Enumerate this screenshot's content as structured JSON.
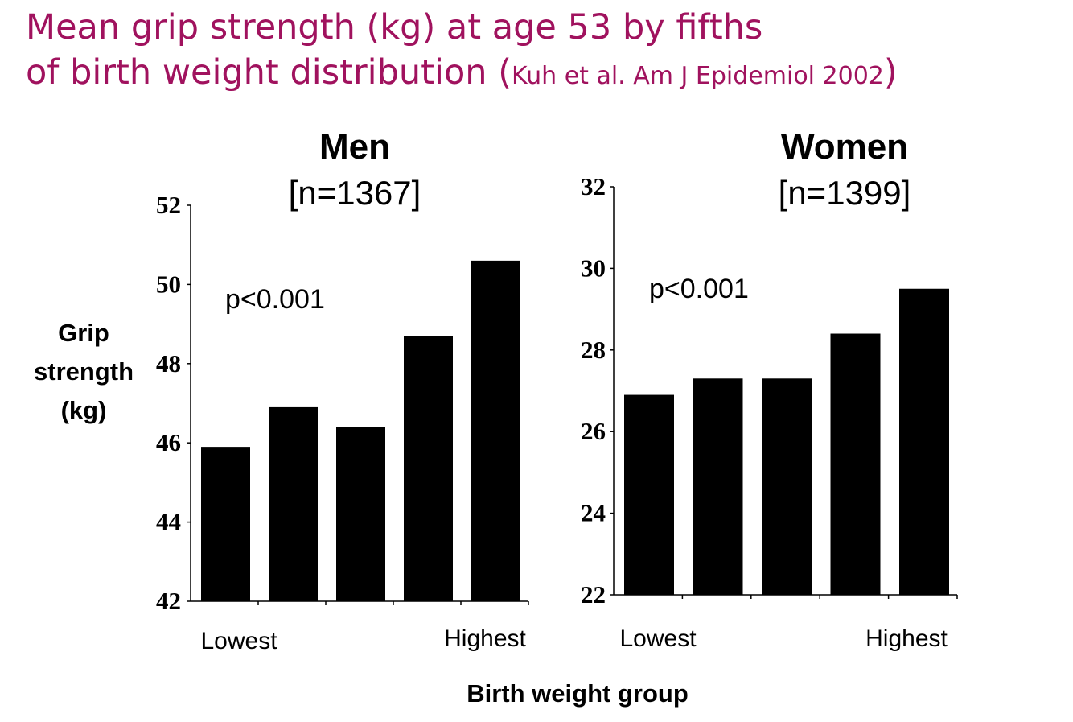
{
  "title": {
    "line1": "Mean grip strength (kg) at age 53 by fifths",
    "line2": "of birth weight distribution",
    "paren_open": "(",
    "citation": "Kuh et al. Am J Epidemiol 2002",
    "paren_close": ")"
  },
  "colors": {
    "title": "#a0125e",
    "bars": "#000000",
    "axes": "#000000"
  },
  "chart_data": [
    {
      "type": "bar",
      "title": "Men",
      "subtitle": "[n=1367]",
      "annotation": "p<0.001",
      "categories": [
        "Lowest",
        "",
        "",
        "",
        "Highest"
      ],
      "values": [
        45.9,
        46.9,
        46.4,
        48.7,
        50.6
      ],
      "ylim": [
        42,
        52
      ],
      "yticks": [
        42,
        44,
        46,
        48,
        50,
        52
      ],
      "ylabel": "Grip strength (kg)",
      "xlabel": "Birth weight group"
    },
    {
      "type": "bar",
      "title": "Women",
      "subtitle": "[n=1399]",
      "annotation": "p<0.001",
      "categories": [
        "Lowest",
        "",
        "",
        "",
        "Highest"
      ],
      "values": [
        26.9,
        27.3,
        27.3,
        28.4,
        29.5
      ],
      "ylim": [
        22,
        32
      ],
      "yticks": [
        22,
        24,
        26,
        28,
        30,
        32
      ],
      "ylabel": "Grip strength (kg)",
      "xlabel": "Birth weight group"
    }
  ],
  "shared": {
    "ylabel_lines": [
      "Grip",
      "strength",
      "(kg)"
    ],
    "xlabel": "Birth weight group",
    "cat_low_label": "Lowest",
    "cat_high_label": "Highest"
  }
}
